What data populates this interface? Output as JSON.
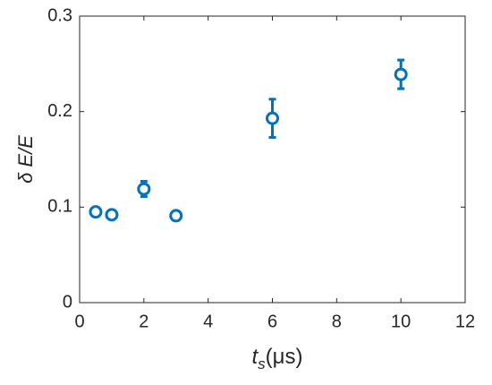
{
  "chart_data": {
    "type": "scatter",
    "xlabel": [
      "t",
      "s",
      "(μs)"
    ],
    "ylabel": "δ E/E",
    "xlim": [
      0,
      12
    ],
    "xticks": [
      0,
      2,
      4,
      6,
      8,
      10,
      12
    ],
    "ylim": [
      0,
      0.3
    ],
    "yticks": [
      0,
      0.1,
      0.2,
      0.3
    ],
    "grid": false,
    "series": [
      {
        "color": "#0072bd",
        "x": [
          0.5,
          1,
          2,
          3,
          6,
          10
        ],
        "values": [
          0.095,
          0.092,
          0.119,
          0.091,
          0.193,
          0.239
        ],
        "errors": [
          0.004,
          0.003,
          0.008,
          0.003,
          0.02,
          0.015
        ]
      }
    ]
  }
}
